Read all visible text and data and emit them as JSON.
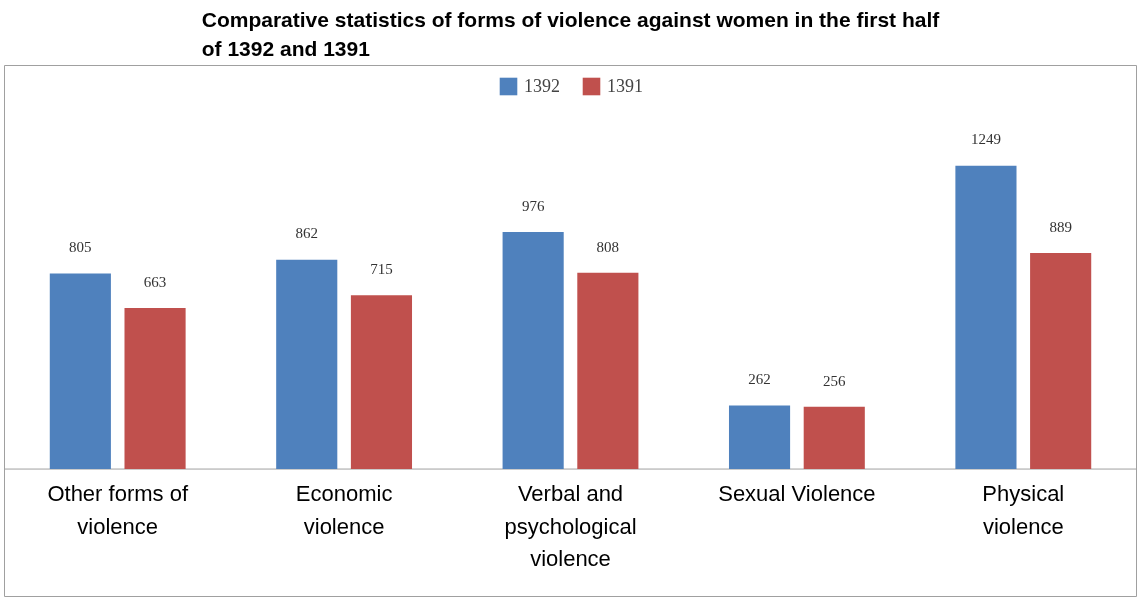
{
  "chart_data": {
    "type": "bar",
    "title": "Comparative statistics of forms of violence against women in the first half of 1392 and 1391",
    "categories": [
      "Other forms of violence",
      "Economic violence",
      "Verbal and psychological violence",
      "Sexual Violence",
      "Physical violence"
    ],
    "series": [
      {
        "name": "1392",
        "color": "#4f81bd",
        "values": [
          805,
          862,
          976,
          262,
          1249
        ]
      },
      {
        "name": "1391",
        "color": "#c0504d",
        "values": [
          663,
          715,
          808,
          256,
          889
        ]
      }
    ],
    "data_labels": true,
    "legend": "top",
    "grid": false
  }
}
